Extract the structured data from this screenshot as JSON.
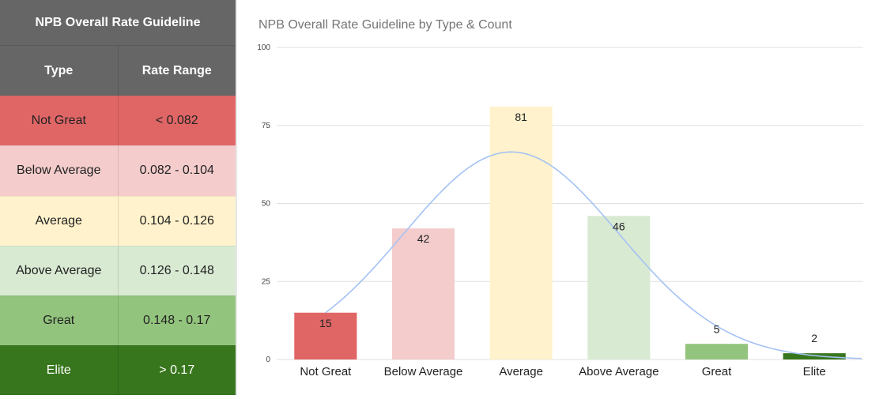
{
  "guide": {
    "title": "NPB Overall Rate Guideline",
    "headers": {
      "type": "Type",
      "range": "Rate Range"
    },
    "rows": [
      {
        "type": "Not Great",
        "range": "< 0.082",
        "color": "#e06666",
        "text_color": "#222222"
      },
      {
        "type": "Below Average",
        "range": "0.082 - 0.104",
        "color": "#f4cccc",
        "text_color": "#222222"
      },
      {
        "type": "Average",
        "range": "0.104 - 0.126",
        "color": "#fff2cc",
        "text_color": "#222222"
      },
      {
        "type": "Above Average",
        "range": "0.126 - 0.148",
        "color": "#d9ead3",
        "text_color": "#222222"
      },
      {
        "type": "Great",
        "range": "0.148 - 0.17",
        "color": "#93c47d",
        "text_color": "#222222"
      },
      {
        "type": "Elite",
        "range": "> 0.17",
        "color": "#38761d",
        "text_color": "#ffffff"
      }
    ]
  },
  "chart_data": {
    "type": "bar",
    "title": "NPB Overall Rate Guideline by Type & Count",
    "categories": [
      "Not Great",
      "Below Average",
      "Average",
      "Above Average",
      "Great",
      "Elite"
    ],
    "values": [
      15,
      42,
      81,
      46,
      5,
      2
    ],
    "colors": [
      "#e06666",
      "#f4cccc",
      "#fff2cc",
      "#d9ead3",
      "#93c47d",
      "#38761d"
    ],
    "elite_label_color": "#38761d",
    "ylim": [
      0,
      100
    ],
    "yticks": [
      0,
      25,
      50,
      75,
      100
    ],
    "grid": true,
    "trendline": {
      "shape": "normal-curve",
      "color": "#a4c2f4"
    }
  }
}
